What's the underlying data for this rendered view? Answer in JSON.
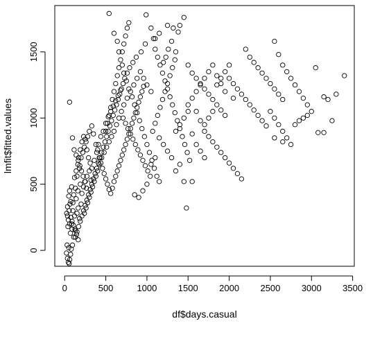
{
  "chart_data": {
    "type": "scatter",
    "title": "",
    "xlabel": "df$days.casual",
    "ylabel": "lmfit$fitted.values",
    "xlim": [
      -120,
      3520
    ],
    "ylim": [
      -120,
      1850
    ],
    "xticks": [
      0,
      500,
      1000,
      1500,
      2000,
      2500,
      3000,
      3500
    ],
    "yticks": [
      0,
      500,
      1000,
      1500
    ],
    "grid": false,
    "legend": "none",
    "marker": "open-circle",
    "marker_color": "#000000",
    "points": [
      [
        22,
        -20
      ],
      [
        34,
        -60
      ],
      [
        45,
        -90
      ],
      [
        55,
        -100
      ],
      [
        62,
        -70
      ],
      [
        72,
        -30
      ],
      [
        30,
        40
      ],
      [
        50,
        20
      ],
      [
        80,
        10
      ],
      [
        95,
        40
      ],
      [
        110,
        100
      ],
      [
        130,
        150
      ],
      [
        70,
        130
      ],
      [
        40,
        180
      ],
      [
        60,
        200
      ],
      [
        90,
        220
      ],
      [
        25,
        280
      ],
      [
        35,
        330
      ],
      [
        120,
        260
      ],
      [
        150,
        280
      ],
      [
        165,
        320
      ],
      [
        180,
        240
      ],
      [
        200,
        350
      ],
      [
        100,
        300
      ],
      [
        75,
        370
      ],
      [
        50,
        410
      ],
      [
        60,
        450
      ],
      [
        85,
        480
      ],
      [
        110,
        420
      ],
      [
        140,
        390
      ],
      [
        160,
        450
      ],
      [
        190,
        500
      ],
      [
        210,
        430
      ],
      [
        230,
        480
      ],
      [
        250,
        520
      ],
      [
        270,
        560
      ],
      [
        300,
        600
      ],
      [
        320,
        530
      ],
      [
        120,
        550
      ],
      [
        140,
        600
      ],
      [
        160,
        650
      ],
      [
        180,
        620
      ],
      [
        200,
        700
      ],
      [
        220,
        740
      ],
      [
        240,
        780
      ],
      [
        260,
        820
      ],
      [
        280,
        860
      ],
      [
        300,
        900
      ],
      [
        330,
        940
      ],
      [
        350,
        880
      ],
      [
        380,
        800
      ],
      [
        400,
        760
      ],
      [
        420,
        700
      ],
      [
        440,
        660
      ],
      [
        460,
        620
      ],
      [
        480,
        580
      ],
      [
        500,
        540
      ],
      [
        520,
        500
      ],
      [
        540,
        460
      ],
      [
        560,
        430
      ],
      [
        580,
        470
      ],
      [
        600,
        520
      ],
      [
        620,
        560
      ],
      [
        640,
        600
      ],
      [
        660,
        640
      ],
      [
        680,
        680
      ],
      [
        700,
        720
      ],
      [
        720,
        760
      ],
      [
        740,
        800
      ],
      [
        760,
        840
      ],
      [
        780,
        880
      ],
      [
        800,
        920
      ],
      [
        820,
        960
      ],
      [
        840,
        1000
      ],
      [
        860,
        1040
      ],
      [
        880,
        1080
      ],
      [
        900,
        1120
      ],
      [
        920,
        1160
      ],
      [
        940,
        1200
      ],
      [
        960,
        1240
      ],
      [
        500,
        900
      ],
      [
        520,
        960
      ],
      [
        540,
        1020
      ],
      [
        560,
        1080
      ],
      [
        580,
        1140
      ],
      [
        600,
        1200
      ],
      [
        620,
        1260
      ],
      [
        640,
        1320
      ],
      [
        660,
        1380
      ],
      [
        680,
        1440
      ],
      [
        700,
        1500
      ],
      [
        720,
        1560
      ],
      [
        740,
        1620
      ],
      [
        760,
        1680
      ],
      [
        780,
        1720
      ],
      [
        540,
        1790
      ],
      [
        600,
        1640
      ],
      [
        640,
        1580
      ],
      [
        660,
        1500
      ],
      [
        700,
        1400
      ],
      [
        720,
        1340
      ],
      [
        750,
        1280
      ],
      [
        780,
        1220
      ],
      [
        820,
        1160
      ],
      [
        850,
        1100
      ],
      [
        880,
        1040
      ],
      [
        910,
        980
      ],
      [
        940,
        920
      ],
      [
        970,
        860
      ],
      [
        1000,
        800
      ],
      [
        1030,
        740
      ],
      [
        1060,
        680
      ],
      [
        1090,
        620
      ],
      [
        1120,
        560
      ],
      [
        1150,
        520
      ],
      [
        990,
        1780
      ],
      [
        1050,
        1680
      ],
      [
        1080,
        1600
      ],
      [
        1100,
        1520
      ],
      [
        1130,
        1460
      ],
      [
        1160,
        1400
      ],
      [
        1190,
        1340
      ],
      [
        1220,
        1280
      ],
      [
        1250,
        1220
      ],
      [
        1280,
        1160
      ],
      [
        1310,
        1100
      ],
      [
        1340,
        1040
      ],
      [
        1370,
        980
      ],
      [
        1400,
        920
      ],
      [
        1430,
        860
      ],
      [
        1460,
        800
      ],
      [
        1490,
        740
      ],
      [
        1520,
        680
      ],
      [
        1400,
        1700
      ],
      [
        1450,
        1760
      ],
      [
        1380,
        1650
      ],
      [
        1300,
        1580
      ],
      [
        1260,
        1520
      ],
      [
        1230,
        1460
      ],
      [
        1200,
        1420
      ],
      [
        1500,
        1400
      ],
      [
        1550,
        1340
      ],
      [
        1600,
        1300
      ],
      [
        1650,
        1260
      ],
      [
        1700,
        1220
      ],
      [
        1750,
        1180
      ],
      [
        1800,
        1140
      ],
      [
        1850,
        1100
      ],
      [
        1900,
        1060
      ],
      [
        1950,
        1020
      ],
      [
        2000,
        1300
      ],
      [
        2050,
        1260
      ],
      [
        2100,
        1220
      ],
      [
        2150,
        1180
      ],
      [
        2200,
        1140
      ],
      [
        2250,
        1100
      ],
      [
        2300,
        1060
      ],
      [
        2350,
        1020
      ],
      [
        2400,
        980
      ],
      [
        2450,
        940
      ],
      [
        1700,
        900
      ],
      [
        1750,
        860
      ],
      [
        1800,
        820
      ],
      [
        1850,
        780
      ],
      [
        1900,
        740
      ],
      [
        1950,
        700
      ],
      [
        2000,
        660
      ],
      [
        2050,
        620
      ],
      [
        2100,
        580
      ],
      [
        2150,
        540
      ],
      [
        2200,
        1520
      ],
      [
        2250,
        1460
      ],
      [
        2300,
        1420
      ],
      [
        2350,
        1380
      ],
      [
        2400,
        1340
      ],
      [
        2450,
        1300
      ],
      [
        2500,
        1260
      ],
      [
        2550,
        1220
      ],
      [
        2600,
        1180
      ],
      [
        2650,
        1140
      ],
      [
        2550,
        1580
      ],
      [
        2600,
        1480
      ],
      [
        2650,
        1400
      ],
      [
        2700,
        1350
      ],
      [
        2750,
        1300
      ],
      [
        2800,
        1250
      ],
      [
        2850,
        1200
      ],
      [
        2900,
        1150
      ],
      [
        2950,
        1100
      ],
      [
        3000,
        1050
      ],
      [
        2500,
        1050
      ],
      [
        2550,
        1000
      ],
      [
        2600,
        950
      ],
      [
        2650,
        900
      ],
      [
        2700,
        850
      ],
      [
        2750,
        800
      ],
      [
        2800,
        950
      ],
      [
        2850,
        980
      ],
      [
        2900,
        1000
      ],
      [
        2950,
        1020
      ],
      [
        3050,
        1380
      ],
      [
        3150,
        1160
      ],
      [
        3200,
        1140
      ],
      [
        3250,
        980
      ],
      [
        3300,
        1180
      ],
      [
        3400,
        1320
      ],
      [
        3080,
        890
      ],
      [
        3150,
        890
      ],
      [
        2550,
        850
      ],
      [
        2650,
        820
      ],
      [
        1480,
        320
      ],
      [
        1550,
        520
      ],
      [
        1450,
        520
      ],
      [
        1350,
        1500
      ],
      [
        1320,
        1680
      ],
      [
        1250,
        1700
      ],
      [
        1150,
        1640
      ],
      [
        1100,
        1600
      ],
      [
        980,
        1560
      ],
      [
        930,
        1500
      ],
      [
        870,
        1460
      ],
      [
        830,
        1420
      ],
      [
        790,
        1380
      ],
      [
        760,
        1340
      ],
      [
        730,
        1300
      ],
      [
        710,
        1260
      ],
      [
        690,
        1220
      ],
      [
        670,
        1180
      ],
      [
        650,
        1140
      ],
      [
        630,
        1100
      ],
      [
        610,
        1060
      ],
      [
        590,
        1020
      ],
      [
        570,
        980
      ],
      [
        550,
        940
      ],
      [
        530,
        900
      ],
      [
        510,
        860
      ],
      [
        490,
        820
      ],
      [
        470,
        780
      ],
      [
        450,
        740
      ],
      [
        430,
        700
      ],
      [
        410,
        660
      ],
      [
        390,
        620
      ],
      [
        370,
        580
      ],
      [
        350,
        540
      ],
      [
        330,
        500
      ],
      [
        310,
        460
      ],
      [
        290,
        420
      ],
      [
        270,
        380
      ],
      [
        250,
        340
      ],
      [
        230,
        300
      ],
      [
        210,
        260
      ],
      [
        190,
        220
      ],
      [
        170,
        180
      ],
      [
        150,
        140
      ],
      [
        130,
        100
      ],
      [
        90,
        160
      ],
      [
        100,
        360
      ],
      [
        130,
        470
      ],
      [
        150,
        560
      ],
      [
        170,
        700
      ],
      [
        190,
        760
      ],
      [
        210,
        820
      ],
      [
        230,
        860
      ],
      [
        250,
        840
      ],
      [
        270,
        760
      ],
      [
        290,
        700
      ],
      [
        310,
        660
      ],
      [
        330,
        620
      ],
      [
        360,
        680
      ],
      [
        390,
        740
      ],
      [
        410,
        800
      ],
      [
        440,
        860
      ],
      [
        470,
        900
      ],
      [
        500,
        960
      ],
      [
        530,
        1010
      ],
      [
        560,
        1050
      ],
      [
        590,
        1090
      ],
      [
        620,
        1130
      ],
      [
        650,
        1170
      ],
      [
        680,
        1210
      ],
      [
        710,
        1000
      ],
      [
        740,
        960
      ],
      [
        770,
        920
      ],
      [
        800,
        880
      ],
      [
        830,
        840
      ],
      [
        860,
        800
      ],
      [
        890,
        760
      ],
      [
        920,
        720
      ],
      [
        950,
        680
      ],
      [
        980,
        640
      ],
      [
        1010,
        600
      ],
      [
        1040,
        560
      ],
      [
        1070,
        900
      ],
      [
        1100,
        960
      ],
      [
        1130,
        1020
      ],
      [
        1160,
        1080
      ],
      [
        1190,
        1140
      ],
      [
        1220,
        1200
      ],
      [
        1250,
        1260
      ],
      [
        1280,
        1320
      ],
      [
        1310,
        1380
      ],
      [
        1340,
        1440
      ],
      [
        1050,
        1200
      ],
      [
        1000,
        1250
      ],
      [
        960,
        1300
      ],
      [
        920,
        1350
      ],
      [
        880,
        1300
      ],
      [
        840,
        1250
      ],
      [
        800,
        1200
      ],
      [
        760,
        1150
      ],
      [
        720,
        1100
      ],
      [
        690,
        1050
      ],
      [
        660,
        1000
      ],
      [
        630,
        950
      ],
      [
        600,
        900
      ],
      [
        570,
        860
      ],
      [
        540,
        820
      ],
      [
        510,
        780
      ],
      [
        480,
        740
      ],
      [
        450,
        700
      ],
      [
        420,
        650
      ],
      [
        400,
        600
      ],
      [
        380,
        560
      ],
      [
        360,
        520
      ],
      [
        340,
        480
      ],
      [
        320,
        440
      ],
      [
        300,
        400
      ],
      [
        280,
        360
      ],
      [
        260,
        320
      ],
      [
        240,
        280
      ],
      [
        60,
        1120
      ],
      [
        95,
        850
      ],
      [
        115,
        760
      ],
      [
        140,
        720
      ],
      [
        165,
        680
      ],
      [
        185,
        640
      ],
      [
        205,
        600
      ],
      [
        225,
        560
      ],
      [
        245,
        520
      ],
      [
        265,
        470
      ],
      [
        55,
        300
      ],
      [
        65,
        350
      ],
      [
        75,
        250
      ],
      [
        85,
        200
      ],
      [
        45,
        230
      ],
      [
        35,
        260
      ],
      [
        105,
        190
      ],
      [
        125,
        160
      ],
      [
        145,
        120
      ],
      [
        165,
        80
      ],
      [
        1600,
        1050
      ],
      [
        1650,
        980
      ],
      [
        1700,
        950
      ],
      [
        1750,
        1000
      ],
      [
        1800,
        1050
      ],
      [
        1850,
        1250
      ],
      [
        1900,
        1300
      ],
      [
        1950,
        1350
      ],
      [
        2000,
        1400
      ],
      [
        2050,
        1150
      ],
      [
        1500,
        1100
      ],
      [
        1550,
        1150
      ],
      [
        1600,
        1200
      ],
      [
        1650,
        1250
      ],
      [
        1700,
        1300
      ],
      [
        1750,
        1350
      ],
      [
        1800,
        1400
      ],
      [
        1850,
        1320
      ],
      [
        1900,
        1260
      ],
      [
        1950,
        1200
      ],
      [
        1350,
        900
      ],
      [
        1400,
        950
      ],
      [
        1450,
        1000
      ],
      [
        1500,
        1050
      ],
      [
        1550,
        880
      ],
      [
        1600,
        800
      ],
      [
        1650,
        750
      ],
      [
        1700,
        700
      ],
      [
        1400,
        650
      ],
      [
        1350,
        600
      ],
      [
        1300,
        700
      ],
      [
        1250,
        750
      ],
      [
        1200,
        800
      ],
      [
        1150,
        850
      ],
      [
        1100,
        700
      ],
      [
        1050,
        650
      ],
      [
        1000,
        500
      ],
      [
        950,
        450
      ],
      [
        900,
        400
      ],
      [
        850,
        420
      ]
    ]
  }
}
